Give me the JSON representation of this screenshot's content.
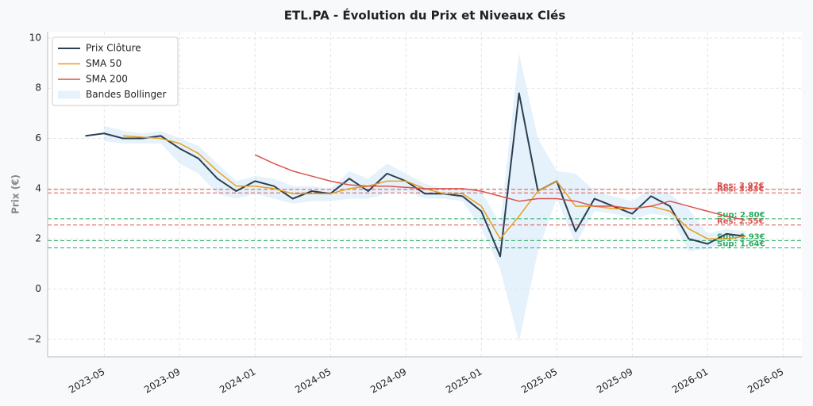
{
  "chart_data": {
    "type": "line",
    "title": "ETL.PA - Évolution du Prix et Niveaux Clés",
    "y_label": "Prix (€)",
    "x": [
      "2023-04",
      "2023-05",
      "2023-06",
      "2023-07",
      "2023-08",
      "2023-09",
      "2023-10",
      "2023-11",
      "2023-12",
      "2024-01",
      "2024-02",
      "2024-03",
      "2024-04",
      "2024-05",
      "2024-06",
      "2024-07",
      "2024-08",
      "2024-09",
      "2024-10",
      "2024-11",
      "2024-12",
      "2025-01",
      "2025-02",
      "2025-03",
      "2025-04",
      "2025-05",
      "2025-06",
      "2025-07",
      "2025-08",
      "2025-09",
      "2025-10",
      "2025-11",
      "2025-12",
      "2026-01",
      "2026-02",
      "2026-03"
    ],
    "series": [
      {
        "name": "Prix Clôture",
        "color": "#2c3e50",
        "width": 2,
        "values": [
          6.1,
          6.2,
          6.0,
          6.0,
          6.1,
          5.6,
          5.2,
          4.4,
          3.9,
          4.3,
          4.1,
          3.6,
          3.9,
          3.8,
          4.4,
          3.9,
          4.6,
          4.3,
          3.8,
          3.8,
          3.7,
          3.1,
          1.3,
          7.8,
          3.9,
          4.3,
          2.3,
          3.6,
          3.3,
          3.0,
          3.7,
          3.3,
          2.0,
          1.8,
          2.2,
          2.1
        ]
      },
      {
        "name": "SMA 50",
        "color": "#e69f1e",
        "width": 1.5,
        "values": [
          null,
          null,
          6.1,
          6.05,
          6.0,
          5.8,
          5.4,
          4.7,
          4.1,
          4.1,
          4.0,
          3.8,
          3.8,
          3.8,
          4.0,
          4.1,
          4.3,
          4.3,
          4.0,
          3.8,
          3.8,
          3.3,
          2.0,
          2.9,
          3.9,
          4.3,
          3.3,
          3.3,
          3.2,
          3.2,
          3.3,
          3.1,
          2.4,
          2.0,
          2.0,
          2.1
        ]
      },
      {
        "name": "SMA 200",
        "color": "#d9534f",
        "width": 1.5,
        "values": [
          null,
          null,
          null,
          null,
          null,
          null,
          null,
          null,
          null,
          5.35,
          5.0,
          4.7,
          4.5,
          4.3,
          4.15,
          4.1,
          4.1,
          4.05,
          4.0,
          4.0,
          4.0,
          3.9,
          3.7,
          3.5,
          3.6,
          3.6,
          3.5,
          3.3,
          3.3,
          3.2,
          3.3,
          3.5,
          3.3,
          3.1,
          2.9,
          2.75
        ]
      }
    ],
    "band": {
      "name": "Bandes Bollinger",
      "color": "#d6eaf8",
      "upper": [
        null,
        6.5,
        6.3,
        6.2,
        6.3,
        6.0,
        5.7,
        5.0,
        4.3,
        4.5,
        4.4,
        4.1,
        4.1,
        4.0,
        4.7,
        4.4,
        5.0,
        4.6,
        4.2,
        4.0,
        4.0,
        3.9,
        2.6,
        9.4,
        6.0,
        4.7,
        4.6,
        3.9,
        3.7,
        3.5,
        4.0,
        3.8,
        3.2,
        2.2,
        2.4,
        2.3
      ],
      "lower": [
        null,
        5.9,
        5.8,
        5.8,
        5.8,
        5.0,
        4.6,
        3.8,
        3.6,
        3.8,
        3.6,
        3.4,
        3.5,
        3.5,
        3.6,
        3.6,
        3.8,
        3.9,
        3.6,
        3.6,
        3.5,
        2.4,
        0.8,
        -2.1,
        1.5,
        3.6,
        1.8,
        3.1,
        3.0,
        2.8,
        3.0,
        2.9,
        1.5,
        1.6,
        1.9,
        1.9
      ]
    },
    "levels": [
      {
        "value": 3.97,
        "label": "Res: 3.97€",
        "color": "#d9534f"
      },
      {
        "value": 3.83,
        "label": "Res: 3.83€",
        "color": "#d9534f"
      },
      {
        "value": 2.55,
        "label": "Res: 2.55€",
        "color": "#d9534f"
      },
      {
        "value": 2.8,
        "label": "Sup: 2.80€",
        "color": "#27ae60"
      },
      {
        "value": 1.93,
        "label": "Sup: 1.93€",
        "color": "#27ae60"
      },
      {
        "value": 1.64,
        "label": "Sup: 1.64€",
        "color": "#27ae60"
      }
    ],
    "xlim": [
      "2023-02",
      "2026-06"
    ],
    "xticks": [
      "2023-05",
      "2023-09",
      "2024-01",
      "2024-05",
      "2024-09",
      "2025-01",
      "2025-05",
      "2025-09",
      "2026-01",
      "2026-05"
    ],
    "ylim": [
      -2.7,
      10.25
    ],
    "yticks": [
      {
        "value": -2,
        "label": "−2"
      },
      0,
      2,
      4,
      6,
      8,
      10
    ],
    "grid": true,
    "legend": "upper left"
  }
}
